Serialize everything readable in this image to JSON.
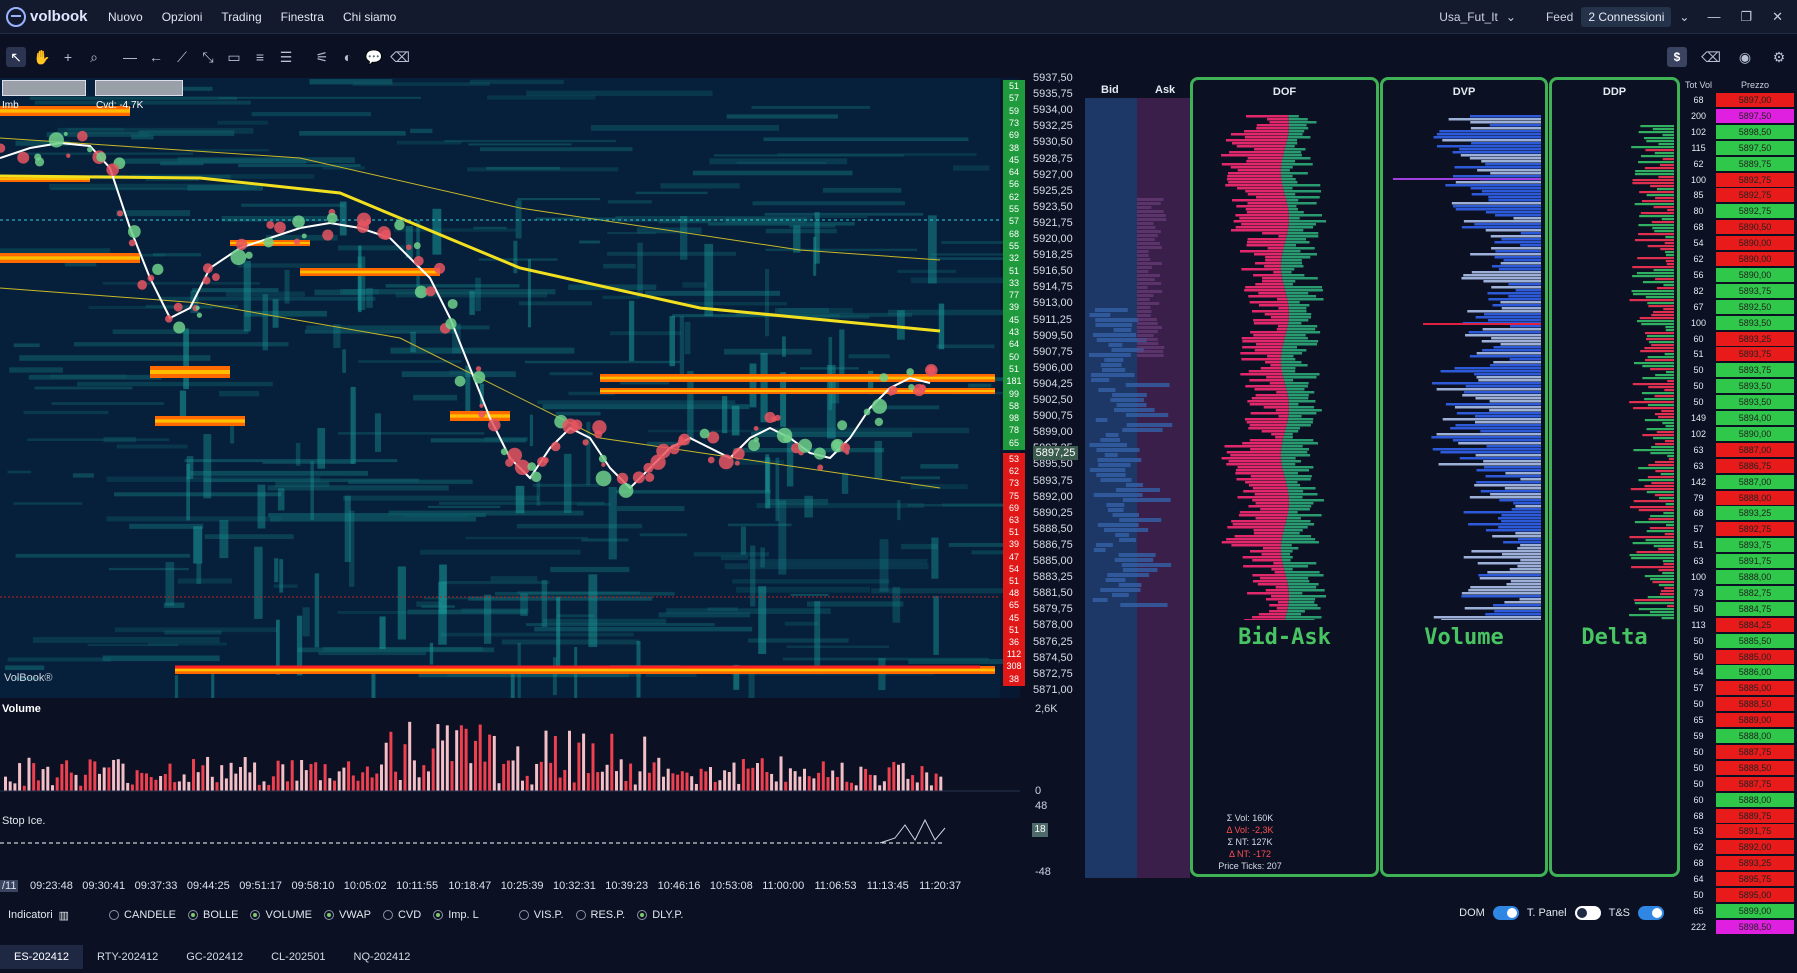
{
  "app": {
    "name": "volbook"
  },
  "menu": [
    "Nuovo",
    "Opzioni",
    "Trading",
    "Finestra",
    "Chi siamo"
  ],
  "header_right": {
    "profile": "Usa_Fut_It",
    "feed_label": "Feed",
    "connections": "2 Connessioni"
  },
  "chart": {
    "imb_label": "Imb",
    "cvd_label": "Cvd: -4,7K",
    "watermark": "VolBook®",
    "current_price": "5897,25",
    "price_labels": [
      "5937,50",
      "5935,75",
      "5934,00",
      "5932,25",
      "5930,50",
      "5928,75",
      "5927,00",
      "5925,25",
      "5923,50",
      "5921,75",
      "5920,00",
      "5918,25",
      "5916,50",
      "5914,75",
      "5913,00",
      "5911,25",
      "5909,50",
      "5907,75",
      "5906,00",
      "5904,25",
      "5902,50",
      "5900,75",
      "5899,00",
      "5897,25",
      "5895,50",
      "5893,75",
      "5892,00",
      "5890,25",
      "5888,50",
      "5886,75",
      "5885,00",
      "5883,25",
      "5881,50",
      "5879,75",
      "5878,00",
      "5876,25",
      "5874,50",
      "5872,75",
      "5871,00"
    ],
    "dom_tags_ask": [
      "51",
      "57",
      "59",
      "73",
      "69",
      "38",
      "45",
      "64",
      "56",
      "62",
      "55",
      "57",
      "68",
      "55",
      "32",
      "51",
      "33",
      "77",
      "39",
      "45",
      "43",
      "64",
      "50",
      "51",
      "181",
      "99",
      "58",
      "98",
      "78",
      "65"
    ],
    "dom_tags_bid": [
      "53",
      "62",
      "73",
      "75",
      "69",
      "63",
      "51",
      "39",
      "47",
      "54",
      "51",
      "48",
      "65",
      "45",
      "51",
      "36",
      "112",
      "308",
      "38"
    ]
  },
  "volume_panel": {
    "title": "Volume",
    "scale_top": "2,6K",
    "scale_bottom": "0"
  },
  "stop_ice_panel": {
    "title": "Stop Ice.",
    "scale_top": "48",
    "scale_bottom": "-48",
    "badge": "18"
  },
  "time_axis": {
    "start": "/11",
    "ticks": [
      "09:23:48",
      "09:30:41",
      "09:37:33",
      "09:44:25",
      "09:51:17",
      "09:58:10",
      "10:05:02",
      "10:11:55",
      "10:18:47",
      "10:25:39",
      "10:32:31",
      "10:39:23",
      "10:46:16",
      "10:53:08",
      "11:00:00",
      "11:06:53",
      "11:13:45",
      "11:20:37"
    ]
  },
  "bid_ask": {
    "bid_label": "Bid",
    "ask_label": "Ask"
  },
  "profiles": {
    "dof": {
      "title": "DOF",
      "label": "Bid-Ask",
      "stats": [
        "Σ Vol: 160K",
        "Δ Vol: -2,3K",
        "Σ NT: 127K",
        "Δ NT: -172",
        "Price Ticks: 207"
      ]
    },
    "dvp": {
      "title": "DVP",
      "label": "Volume"
    },
    "ddp": {
      "title": "DDP",
      "label": "Delta"
    }
  },
  "ladder": {
    "col_tot": "Tot Vol",
    "col_price": "Prezzo",
    "rows": [
      {
        "tot": "68",
        "price": "5897,00",
        "color": "red"
      },
      {
        "tot": "200",
        "price": "5897,50",
        "color": "magenta"
      },
      {
        "tot": "102",
        "price": "5898,50",
        "color": "green"
      },
      {
        "tot": "115",
        "price": "5897,50",
        "color": "green"
      },
      {
        "tot": "62",
        "price": "5889,75",
        "color": "green"
      },
      {
        "tot": "100",
        "price": "5892,75",
        "color": "red"
      },
      {
        "tot": "85",
        "price": "5892,75",
        "color": "red"
      },
      {
        "tot": "80",
        "price": "5892,75",
        "color": "green"
      },
      {
        "tot": "68",
        "price": "5890,50",
        "color": "red"
      },
      {
        "tot": "54",
        "price": "5890,00",
        "color": "red"
      },
      {
        "tot": "62",
        "price": "5890,00",
        "color": "red"
      },
      {
        "tot": "56",
        "price": "5890,00",
        "color": "green"
      },
      {
        "tot": "82",
        "price": "5893,75",
        "color": "green"
      },
      {
        "tot": "67",
        "price": "5892,50",
        "color": "green"
      },
      {
        "tot": "100",
        "price": "5893,50",
        "color": "green"
      },
      {
        "tot": "60",
        "price": "5893,25",
        "color": "red"
      },
      {
        "tot": "51",
        "price": "5893,75",
        "color": "red"
      },
      {
        "tot": "50",
        "price": "5893,75",
        "color": "green"
      },
      {
        "tot": "50",
        "price": "5893,50",
        "color": "green"
      },
      {
        "tot": "50",
        "price": "5893,50",
        "color": "green"
      },
      {
        "tot": "149",
        "price": "5894,00",
        "color": "green"
      },
      {
        "tot": "102",
        "price": "5890,00",
        "color": "green"
      },
      {
        "tot": "63",
        "price": "5887,00",
        "color": "red"
      },
      {
        "tot": "63",
        "price": "5886,75",
        "color": "red"
      },
      {
        "tot": "142",
        "price": "5887,00",
        "color": "green"
      },
      {
        "tot": "79",
        "price": "5888,00",
        "color": "red"
      },
      {
        "tot": "68",
        "price": "5893,25",
        "color": "green"
      },
      {
        "tot": "57",
        "price": "5892,75",
        "color": "red"
      },
      {
        "tot": "51",
        "price": "5893,75",
        "color": "green"
      },
      {
        "tot": "63",
        "price": "5891,75",
        "color": "green"
      },
      {
        "tot": "100",
        "price": "5888,00",
        "color": "green"
      },
      {
        "tot": "73",
        "price": "5882,75",
        "color": "green"
      },
      {
        "tot": "50",
        "price": "5884,75",
        "color": "green"
      },
      {
        "tot": "113",
        "price": "5884,25",
        "color": "red"
      },
      {
        "tot": "50",
        "price": "5885,50",
        "color": "green"
      },
      {
        "tot": "50",
        "price": "5885,00",
        "color": "red"
      },
      {
        "tot": "54",
        "price": "5886,00",
        "color": "green"
      },
      {
        "tot": "57",
        "price": "5885,00",
        "color": "red"
      },
      {
        "tot": "50",
        "price": "5888,50",
        "color": "red"
      },
      {
        "tot": "65",
        "price": "5889,00",
        "color": "red"
      },
      {
        "tot": "59",
        "price": "5888,00",
        "color": "green"
      },
      {
        "tot": "50",
        "price": "5887,75",
        "color": "red"
      },
      {
        "tot": "50",
        "price": "5888,50",
        "color": "red"
      },
      {
        "tot": "50",
        "price": "5887,75",
        "color": "red"
      },
      {
        "tot": "60",
        "price": "5888,00",
        "color": "green"
      },
      {
        "tot": "68",
        "price": "5889,75",
        "color": "red"
      },
      {
        "tot": "53",
        "price": "5891,75",
        "color": "red"
      },
      {
        "tot": "62",
        "price": "5892,00",
        "color": "red"
      },
      {
        "tot": "68",
        "price": "5893,25",
        "color": "red"
      },
      {
        "tot": "64",
        "price": "5895,75",
        "color": "red"
      },
      {
        "tot": "50",
        "price": "5895,00",
        "color": "red"
      },
      {
        "tot": "65",
        "price": "5899,00",
        "color": "green"
      },
      {
        "tot": "222",
        "price": "5898,50",
        "color": "magenta"
      }
    ]
  },
  "indicators": {
    "title": "Indicatori",
    "items": [
      {
        "label": "CANDELE",
        "on": false
      },
      {
        "label": "BOLLE",
        "on": true
      },
      {
        "label": "VOLUME",
        "on": true
      },
      {
        "label": "VWAP",
        "on": true
      },
      {
        "label": "CVD",
        "on": false
      },
      {
        "label": "Imp. L",
        "on": true
      },
      {
        "label": "VIS.P.",
        "on": false
      },
      {
        "label": "RES.P.",
        "on": false
      },
      {
        "label": "DLY.P.",
        "on": true
      }
    ],
    "toggles": [
      {
        "label": "DOM",
        "on": true
      },
      {
        "label": "T. Panel",
        "on": false
      },
      {
        "label": "T&S",
        "on": true
      }
    ]
  },
  "tabs": [
    "ES-202412",
    "RTY-202412",
    "GC-202412",
    "CL-202501",
    "NQ-202412"
  ],
  "colors": {
    "accent_green": "#3fb256",
    "bid_red": "#e02020",
    "ask_green": "#2fb44a",
    "magenta": "#e020e0"
  }
}
